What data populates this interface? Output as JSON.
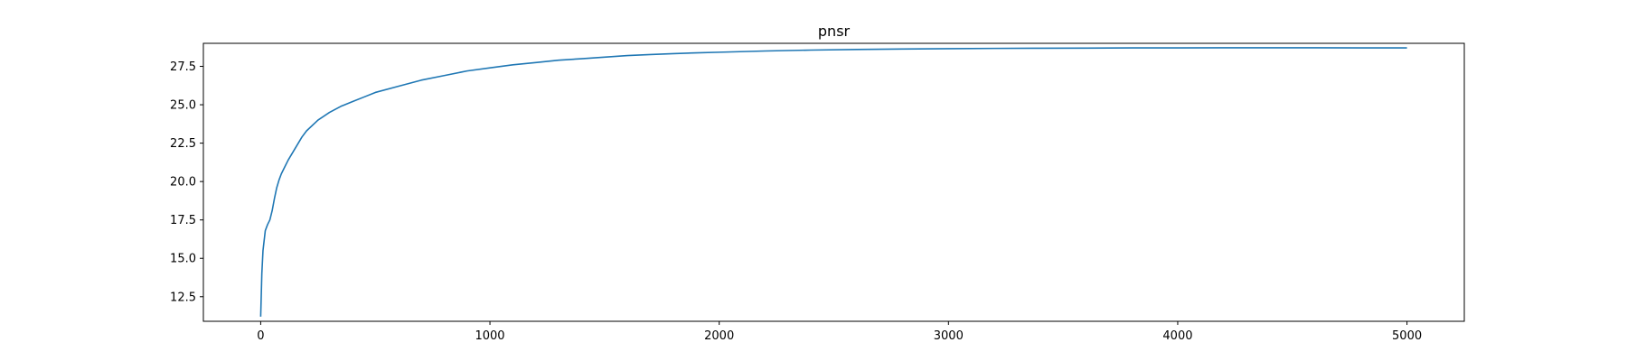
{
  "chart_data": {
    "type": "line",
    "title": "pnsr",
    "xlabel": "",
    "ylabel": "",
    "xlim": [
      -250,
      5250
    ],
    "ylim": [
      10.9,
      29.0
    ],
    "xticks": [
      0,
      1000,
      2000,
      3000,
      4000,
      5000
    ],
    "yticks": [
      12.5,
      15.0,
      17.5,
      20.0,
      22.5,
      25.0,
      27.5
    ],
    "xtick_labels": [
      "0",
      "1000",
      "2000",
      "3000",
      "4000",
      "5000"
    ],
    "ytick_labels": [
      "12.5",
      "15.0",
      "17.5",
      "20.0",
      "22.5",
      "25.0",
      "27.5"
    ],
    "grid": false,
    "legend": "none",
    "line_color": "#1f77b4",
    "series": [
      {
        "x": [
          0,
          5,
          10,
          20,
          30,
          40,
          50,
          60,
          70,
          80,
          90,
          100,
          120,
          140,
          160,
          180,
          200,
          250,
          300,
          350,
          400,
          450,
          500,
          600,
          700,
          800,
          900,
          1000,
          1100,
          1200,
          1300,
          1400,
          1500,
          1600,
          1700,
          1800,
          1900,
          2000,
          2200,
          2400,
          2600,
          2800,
          3000,
          3200,
          3400,
          3600,
          3800,
          4000,
          4200,
          4400,
          4600,
          4800,
          5000
        ],
        "values": [
          11.2,
          14.0,
          15.5,
          16.8,
          17.2,
          17.5,
          18.1,
          18.9,
          19.6,
          20.1,
          20.5,
          20.8,
          21.4,
          21.9,
          22.4,
          22.9,
          23.3,
          24.0,
          24.5,
          24.9,
          25.2,
          25.5,
          25.8,
          26.2,
          26.6,
          26.9,
          27.2,
          27.4,
          27.6,
          27.75,
          27.9,
          28.0,
          28.1,
          28.2,
          28.27,
          28.33,
          28.38,
          28.42,
          28.5,
          28.56,
          28.6,
          28.63,
          28.65,
          28.67,
          28.68,
          28.69,
          28.7,
          28.7,
          28.71,
          28.71,
          28.71,
          28.7,
          28.7
        ]
      }
    ]
  }
}
